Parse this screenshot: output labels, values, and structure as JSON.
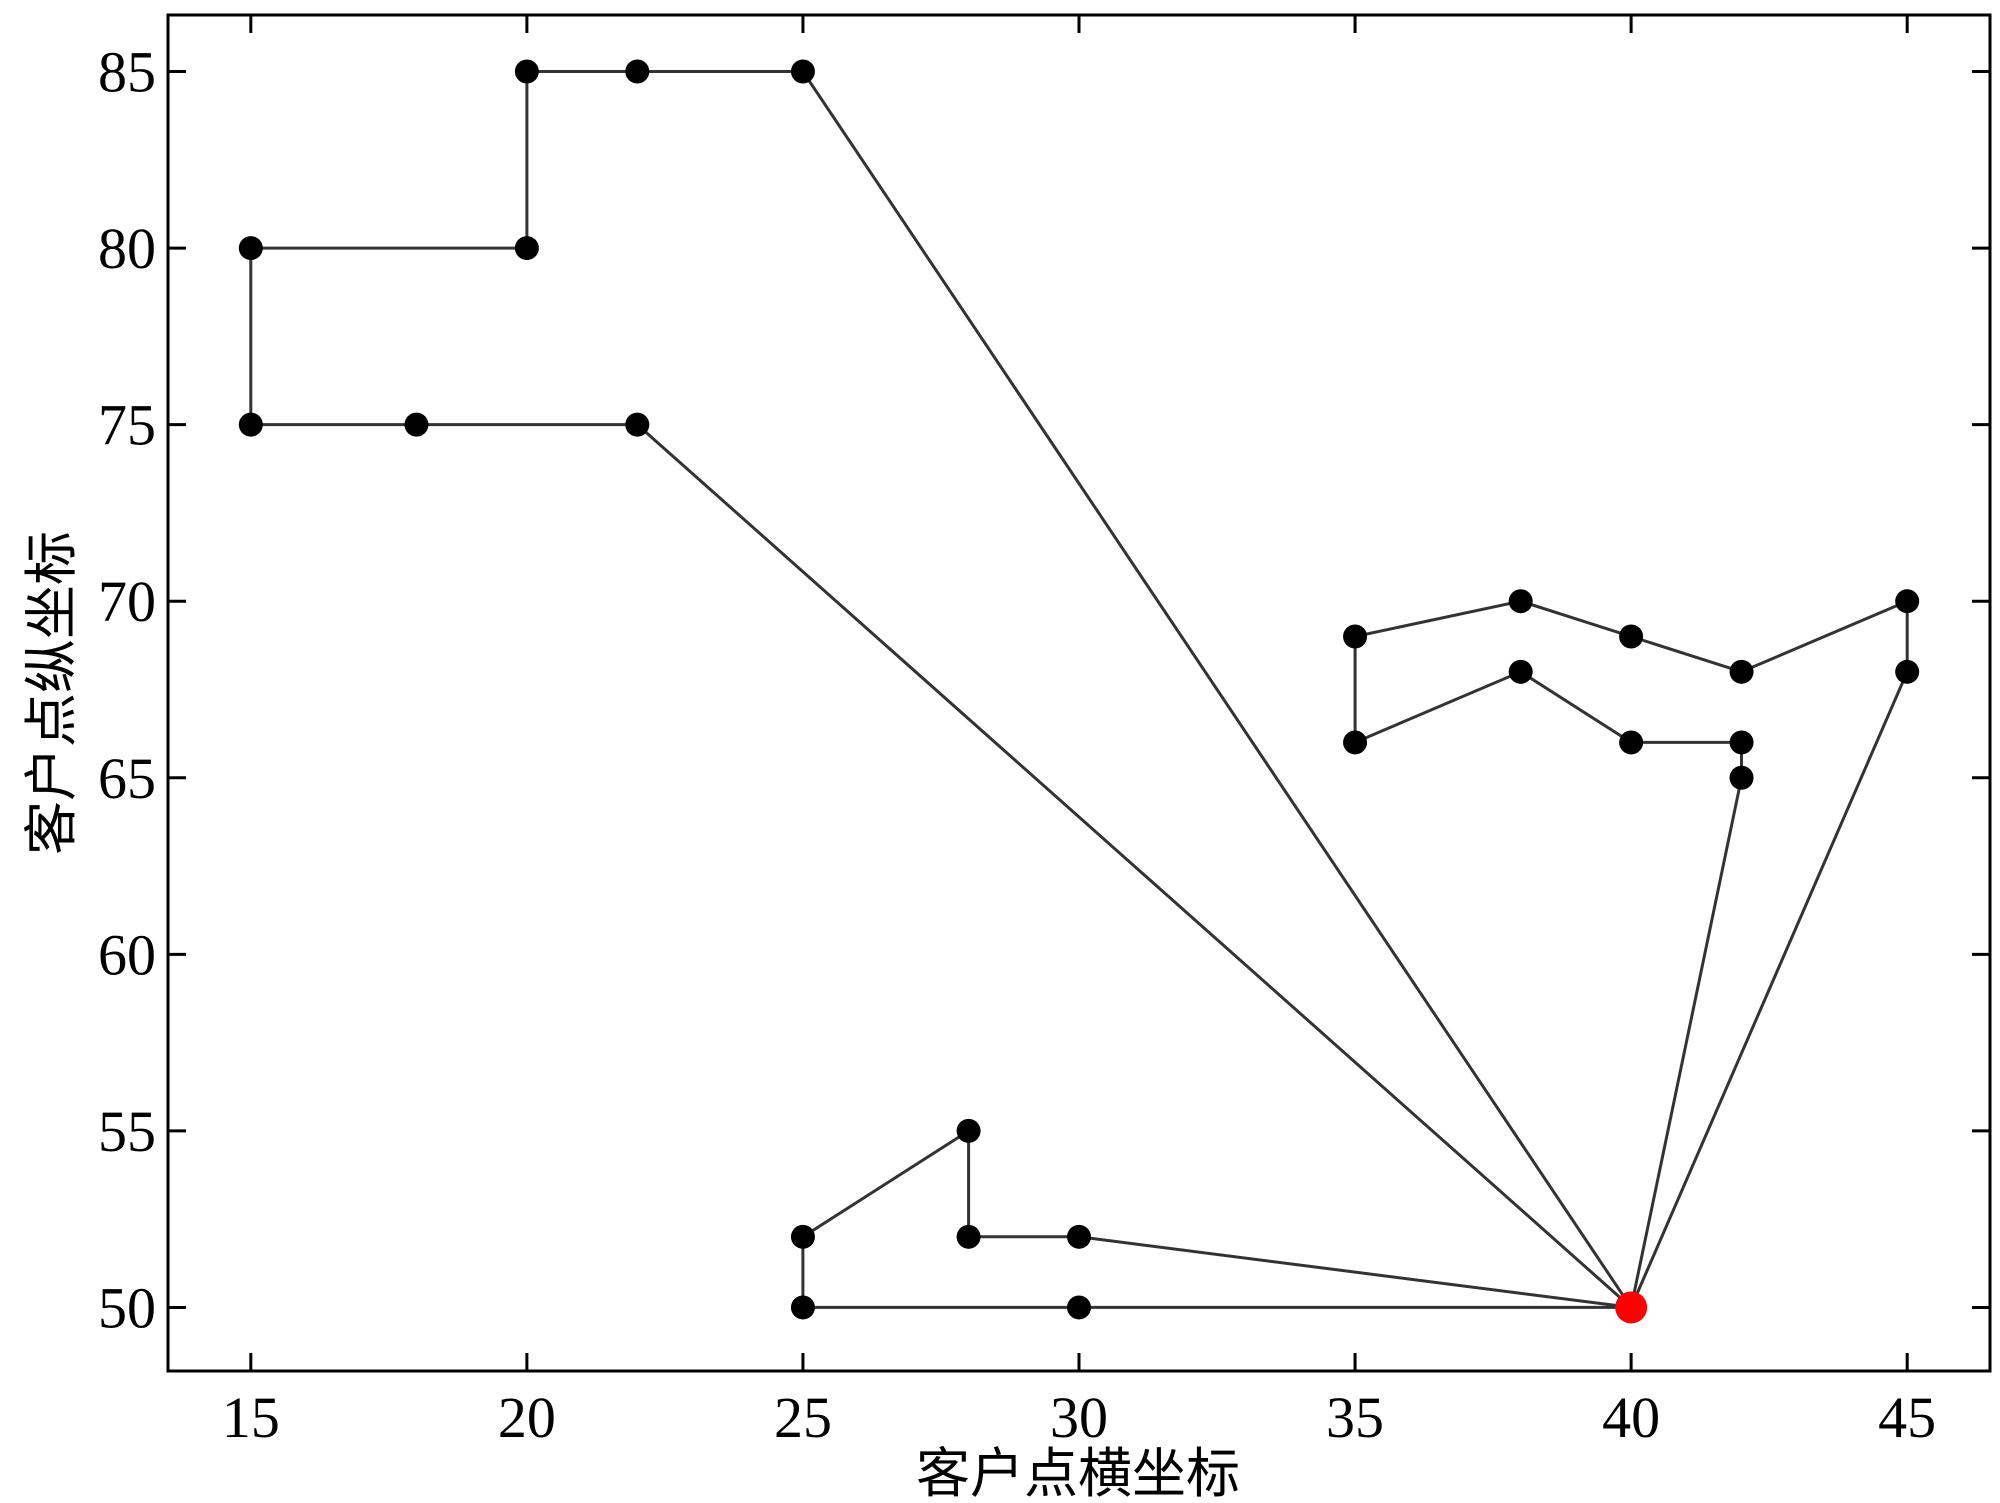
{
  "chart_data": {
    "type": "line",
    "title": "",
    "xlabel": "客户点横坐标",
    "ylabel": "客户点纵坐标",
    "xlim": [
      13.5,
      46.5
    ],
    "ylim": [
      48.2,
      86.6
    ],
    "xticks": [
      15,
      20,
      25,
      30,
      35,
      40,
      45
    ],
    "yticks": [
      50,
      55,
      60,
      65,
      70,
      75,
      80,
      85
    ],
    "xtick_labels": [
      "15",
      "20",
      "25",
      "30",
      "35",
      "40",
      "45"
    ],
    "ytick_labels": [
      "50",
      "55",
      "60",
      "65",
      "70",
      "75",
      "80",
      "85"
    ],
    "grid": false,
    "depot": {
      "x": 40,
      "y": 50,
      "color": "#ff0000"
    },
    "point_color": "#000000",
    "line_color": "#333333",
    "routes": [
      {
        "points": [
          [
            40,
            50
          ],
          [
            30,
            50
          ],
          [
            25,
            50
          ],
          [
            25,
            52
          ],
          [
            28,
            55
          ],
          [
            28,
            52
          ],
          [
            30,
            52
          ],
          [
            40,
            50
          ]
        ]
      },
      {
        "points": [
          [
            40,
            50
          ],
          [
            22,
            75
          ],
          [
            18,
            75
          ],
          [
            15,
            75
          ],
          [
            15,
            80
          ],
          [
            20,
            80
          ],
          [
            20,
            85
          ],
          [
            22,
            85
          ],
          [
            25,
            85
          ],
          [
            40,
            50
          ]
        ]
      },
      {
        "points": [
          [
            40,
            50
          ],
          [
            42,
            65
          ],
          [
            42,
            66
          ],
          [
            40,
            66
          ],
          [
            38,
            68
          ],
          [
            35,
            66
          ],
          [
            35,
            69
          ],
          [
            38,
            70
          ],
          [
            40,
            69
          ],
          [
            42,
            68
          ],
          [
            45,
            70
          ],
          [
            45,
            68
          ],
          [
            40,
            50
          ]
        ]
      }
    ]
  }
}
